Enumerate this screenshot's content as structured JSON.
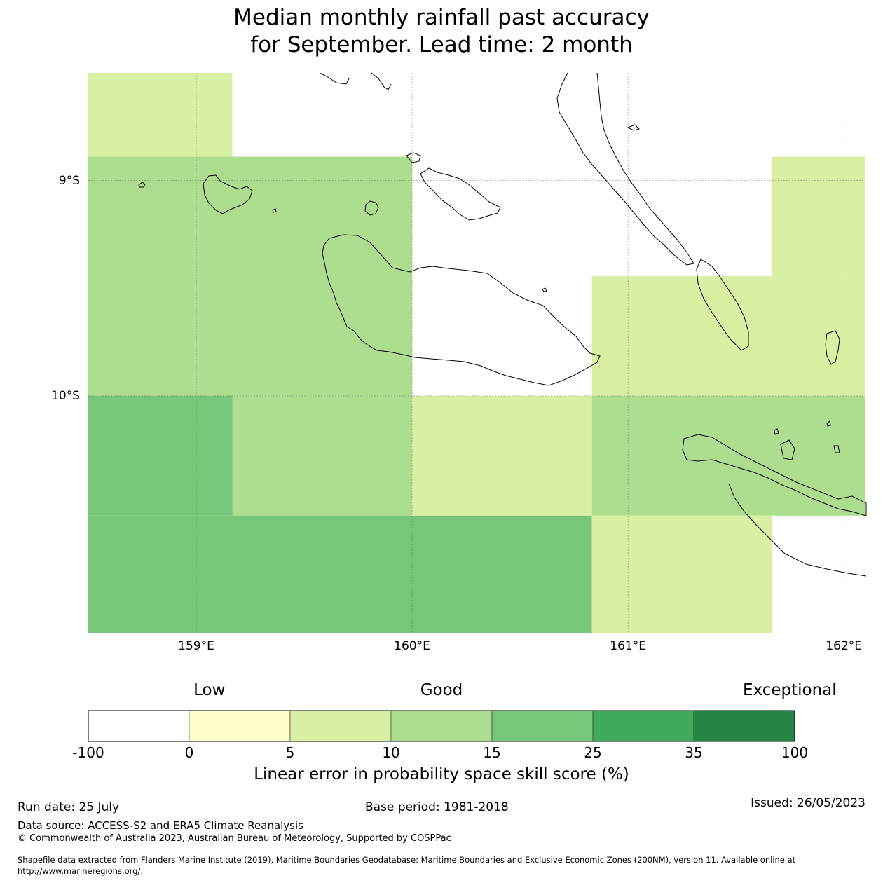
{
  "title": {
    "line1": "Median monthly rainfall past accuracy",
    "line2": "for September. Lead time: 2 month"
  },
  "map": {
    "lon_range": [
      158.5,
      162.1
    ],
    "lat_range": [
      -11.1,
      -8.5
    ],
    "x_ticks": [
      {
        "value": 159,
        "label": "159°E"
      },
      {
        "value": 160,
        "label": "160°E"
      },
      {
        "value": 161,
        "label": "161°E"
      },
      {
        "value": 162,
        "label": "162°E"
      }
    ],
    "y_ticks": [
      {
        "value": -9,
        "label": "9°S"
      },
      {
        "value": -10,
        "label": "10°S"
      }
    ],
    "grid": true,
    "cells": [
      {
        "lon": [
          158.5,
          159.167
        ],
        "lat": [
          -8.889,
          -8.5
        ],
        "class": 2
      },
      {
        "lon": [
          158.5,
          160.0
        ],
        "lat": [
          -10.0,
          -8.889
        ],
        "class": 3
      },
      {
        "lon": [
          161.667,
          162.1
        ],
        "lat": [
          -9.444,
          -8.889
        ],
        "class": 2
      },
      {
        "lon": [
          160.833,
          162.1
        ],
        "lat": [
          -10.0,
          -9.444
        ],
        "class": 2
      },
      {
        "lon": [
          158.5,
          159.167
        ],
        "lat": [
          -10.556,
          -10.0
        ],
        "class": 4
      },
      {
        "lon": [
          159.167,
          160.0
        ],
        "lat": [
          -10.556,
          -10.0
        ],
        "class": 3
      },
      {
        "lon": [
          160.0,
          160.833
        ],
        "lat": [
          -10.556,
          -10.0
        ],
        "class": 2
      },
      {
        "lon": [
          160.833,
          162.1
        ],
        "lat": [
          -10.556,
          -10.0
        ],
        "class": 3
      },
      {
        "lon": [
          158.5,
          160.833
        ],
        "lat": [
          -11.1,
          -10.556
        ],
        "class": 4
      },
      {
        "lon": [
          160.833,
          161.667
        ],
        "lat": [
          -11.1,
          -10.556
        ],
        "class": 2
      }
    ]
  },
  "colorbar": {
    "categories": [
      {
        "label": "Low",
        "at": 1.2
      },
      {
        "label": "Good",
        "at": 3.5
      },
      {
        "label": "Exceptional",
        "at": 6.95
      }
    ],
    "colors": [
      "#ffffff",
      "#ffffcc",
      "#d9f0a3",
      "#addd8e",
      "#78c679",
      "#41ab5d",
      "#238443"
    ],
    "ticks": [
      "-100",
      "0",
      "5",
      "10",
      "15",
      "25",
      "35",
      "100"
    ],
    "label": "Linear error in probability space skill score (%)"
  },
  "footer": {
    "run_date": "Run date: 25 July",
    "base_period": "Base period: 1981-2018",
    "issued": "Issued: 26/05/2023",
    "data_source": "Data source: ACCESS-S2 and ERA5 Climate Reanalysis",
    "copyright": "© Commonwealth of Australia 2023, Australian Bureau of Meteorology, Supported by COSPPac",
    "shapefile_line1": "Shapefile data extracted from Flanders Marine Institute (2019), Maritime Boundaries Geodatabase: Maritime Boundaries and Exclusive Economic Zones (200NM), version 11. Available online at",
    "shapefile_line2": "http://www.marineregions.org/."
  }
}
